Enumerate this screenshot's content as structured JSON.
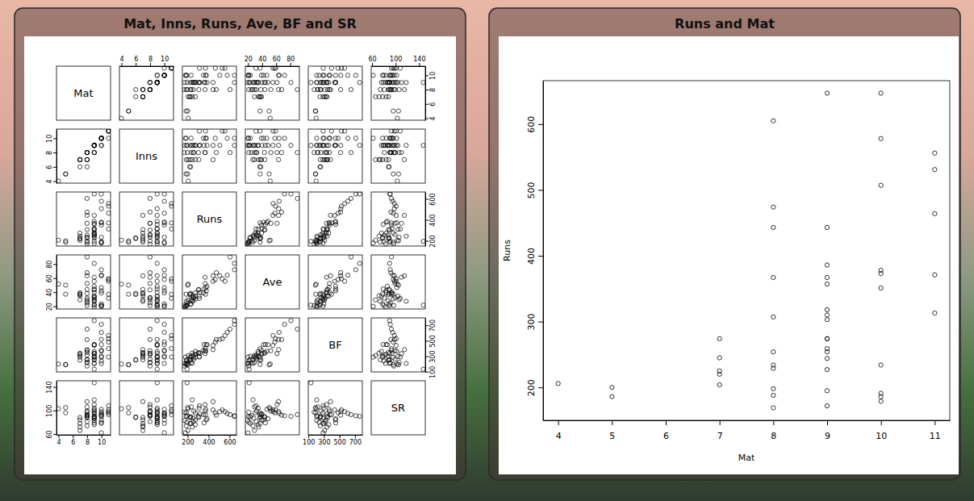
{
  "chart_data": [
    {
      "type": "scatter_matrix",
      "title": "Mat, Inns, Runs, Ave, BF and SR",
      "marker": "circle",
      "variables": [
        {
          "name": "Mat",
          "lim": [
            3.72,
            11.28
          ],
          "ticks": [
            4,
            6,
            8,
            10
          ],
          "values": [
            4,
            5,
            5,
            7,
            7,
            7,
            7,
            7,
            8,
            8,
            8,
            8,
            8,
            8,
            8,
            8,
            8,
            8,
            8,
            9,
            9,
            9,
            9,
            9,
            9,
            9,
            9,
            9,
            9,
            9,
            9,
            9,
            9,
            9,
            9,
            10,
            10,
            10,
            10,
            10,
            10,
            10,
            10,
            10,
            10,
            11,
            11,
            11,
            11,
            11
          ]
        },
        {
          "name": "Inns",
          "lim": [
            3.72,
            11.28
          ],
          "ticks": [
            4,
            6,
            8,
            10
          ],
          "values": [
            4,
            5,
            5,
            7,
            7,
            7,
            6,
            7,
            8,
            8,
            7,
            8,
            7,
            8,
            8,
            6,
            8,
            7,
            8,
            9,
            9,
            9,
            8,
            9,
            9,
            9,
            8,
            9,
            9,
            8,
            9,
            9,
            9,
            9,
            9,
            10,
            10,
            9,
            10,
            10,
            10,
            10,
            9,
            10,
            10,
            11,
            11,
            10,
            11,
            11
          ]
        },
        {
          "name": "Runs",
          "lim": [
            150,
            666
          ],
          "ticks": [
            200,
            400,
            600
          ],
          "values": [
            206,
            200,
            186,
            274,
            245,
            225,
            220,
            204,
            605,
            474,
            443,
            367,
            307,
            254,
            234,
            229,
            198,
            188,
            169,
            647,
            443,
            386,
            367,
            357,
            318,
            310,
            303,
            274,
            274,
            259,
            254,
            244,
            227,
            195,
            172,
            647,
            578,
            507,
            378,
            373,
            351,
            234,
            191,
            186,
            179,
            556,
            531,
            464,
            371,
            313
          ]
        },
        {
          "name": "Ave",
          "lim": [
            16.2,
            92.9
          ],
          "ticks": [
            20,
            40,
            60,
            80
          ],
          "values": [
            51.5,
            50,
            37.2,
            39.1,
            35,
            37.5,
            36.7,
            29.1,
            90,
            67.7,
            63.3,
            52.4,
            43.9,
            31.8,
            29.3,
            38.2,
            24.8,
            26.9,
            21.1,
            80.9,
            55.4,
            48.3,
            61.2,
            44.6,
            39.8,
            34.4,
            43.3,
            30.4,
            34.3,
            32.4,
            28.2,
            27.1,
            22.7,
            21.7,
            19.1,
            71.9,
            64.2,
            63.4,
            42,
            46.6,
            39,
            23.4,
            21.2,
            20.7,
            19.9,
            55.6,
            59,
            58,
            37.1,
            31.3
          ]
        },
        {
          "name": "BF",
          "lim": [
            98,
            795
          ],
          "ticks": [
            100,
            300,
            500,
            700
          ],
          "values": [
            200,
            190,
            194,
            326,
            340,
            288,
            250,
            309,
            650,
            515,
            385,
            371,
            349,
            314,
            221,
            257,
            218,
            254,
            174,
            760,
            439,
            449,
            334,
            452,
            338,
            298,
            337,
            285,
            361,
            262,
            292,
            207,
            255,
            133,
            207,
            711,
            608,
            517,
            450,
            366,
            377,
            300,
            239,
            207,
            289,
            567,
            526,
            483,
            399,
            290
          ]
        },
        {
          "name": "SR",
          "lim": [
            58.6,
            150.4
          ],
          "ticks": [
            60,
            100,
            140
          ],
          "values": [
            103,
            105,
            96,
            84,
            72,
            78,
            88,
            66,
            93,
            92,
            115,
            99,
            88,
            81,
            106,
            89,
            91,
            74,
            97,
            90,
            101,
            86,
            110,
            79,
            94,
            104,
            90,
            96,
            76,
            99,
            87,
            118,
            89,
            147,
            83,
            91,
            95,
            98,
            84,
            102,
            93,
            78,
            80,
            90,
            62,
            98,
            101,
            96,
            93,
            108
          ]
        }
      ]
    },
    {
      "type": "scatter",
      "title": "Runs and Mat",
      "x_label": "Mat",
      "y_label": "Runs",
      "marker": "circle",
      "xlim": [
        3.72,
        11.28
      ],
      "xticks": [
        4,
        5,
        6,
        7,
        8,
        9,
        10,
        11
      ],
      "ylim": [
        150,
        666
      ],
      "yticks": [
        200,
        300,
        400,
        500,
        600
      ],
      "x": [
        4,
        5,
        5,
        7,
        7,
        7,
        7,
        7,
        8,
        8,
        8,
        8,
        8,
        8,
        8,
        8,
        8,
        8,
        8,
        9,
        9,
        9,
        9,
        9,
        9,
        9,
        9,
        9,
        9,
        9,
        9,
        9,
        9,
        9,
        9,
        10,
        10,
        10,
        10,
        10,
        10,
        10,
        10,
        10,
        10,
        11,
        11,
        11,
        11,
        11
      ],
      "y": [
        206,
        200,
        186,
        274,
        245,
        225,
        220,
        204,
        605,
        474,
        443,
        367,
        307,
        254,
        234,
        229,
        198,
        188,
        169,
        647,
        443,
        386,
        367,
        357,
        318,
        310,
        303,
        274,
        274,
        259,
        254,
        244,
        227,
        195,
        172,
        647,
        578,
        507,
        378,
        373,
        351,
        234,
        191,
        186,
        179,
        556,
        531,
        464,
        371,
        313
      ]
    }
  ]
}
